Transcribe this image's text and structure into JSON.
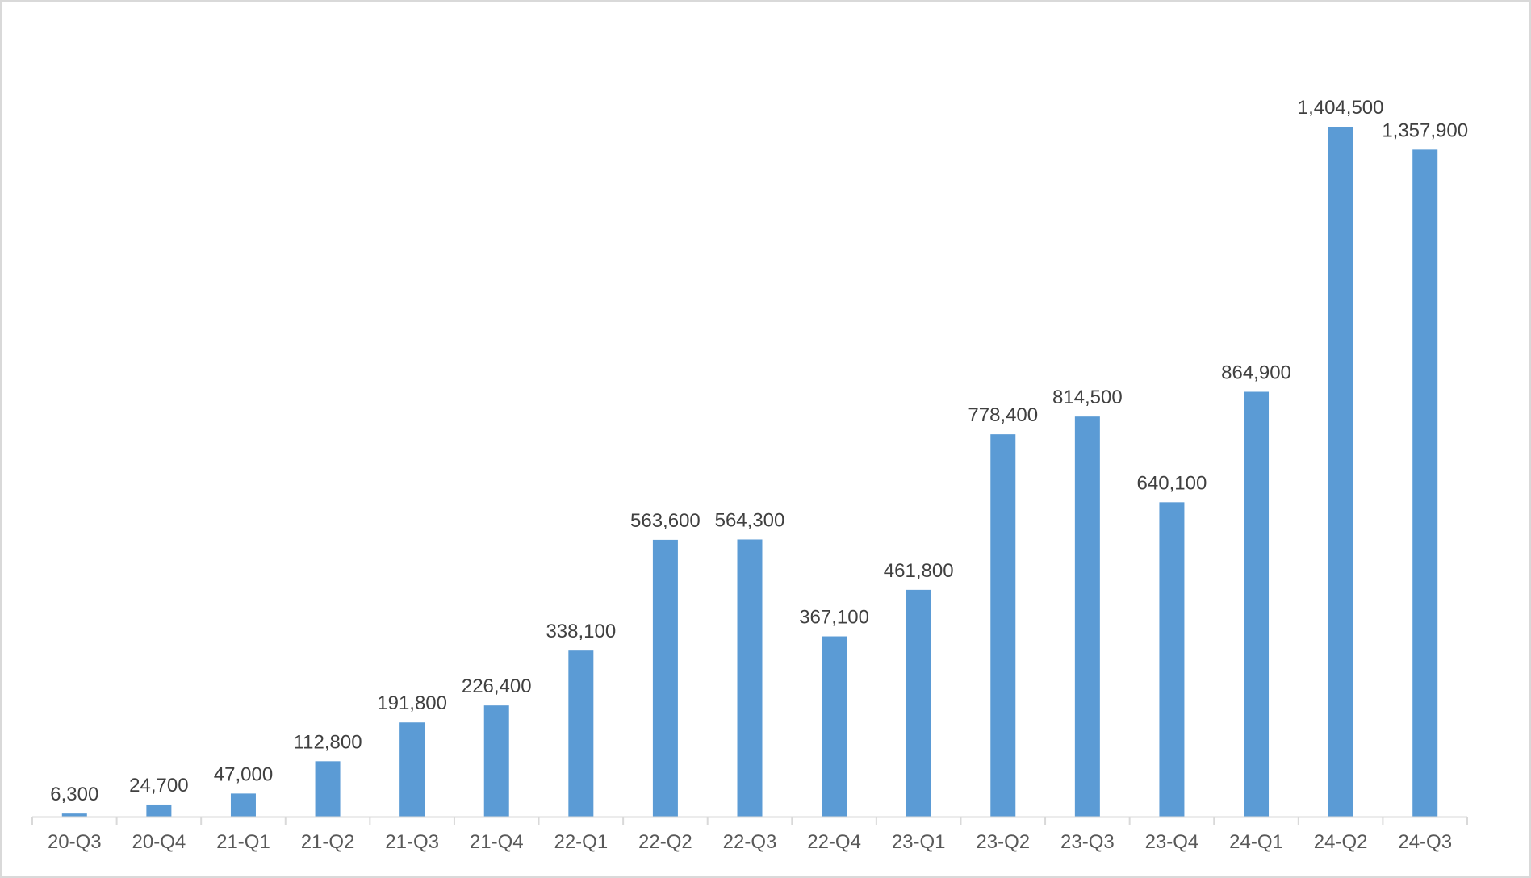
{
  "chart_data": {
    "type": "bar",
    "categories": [
      "20-Q3",
      "20-Q4",
      "21-Q1",
      "21-Q2",
      "21-Q3",
      "21-Q4",
      "22-Q1",
      "22-Q2",
      "22-Q3",
      "22-Q4",
      "23-Q1",
      "23-Q2",
      "23-Q3",
      "23-Q4",
      "24-Q1",
      "24-Q2",
      "24-Q3"
    ],
    "values": [
      6300,
      24700,
      47000,
      112800,
      191800,
      226400,
      338100,
      563600,
      564300,
      367100,
      461800,
      778400,
      814500,
      640100,
      864900,
      1404500,
      1357900
    ],
    "value_labels": [
      "6,300",
      "24,700",
      "47,000",
      "112,800",
      "191,800",
      "226,400",
      "338,100",
      "563,600",
      "564,300",
      "367,100",
      "461,800",
      "778,400",
      "814,500",
      "640,100",
      "864,900",
      "1,404,500",
      "1,357,900"
    ],
    "title": "",
    "xlabel": "",
    "ylabel": "",
    "ylim": [
      0,
      1404500
    ],
    "grid": false,
    "legend": "none",
    "colors": {
      "bar": "#5b9bd5",
      "axis": "#d9d9d9",
      "frame": "#d9d9d9",
      "label_text": "#404040",
      "tick_text": "#595959"
    }
  }
}
